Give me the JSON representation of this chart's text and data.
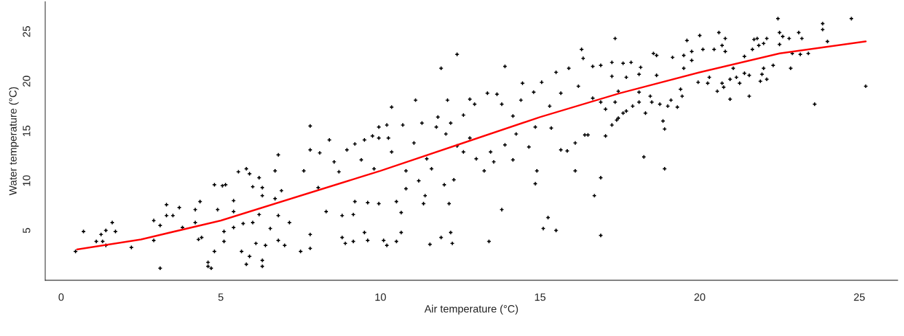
{
  "chart_data": {
    "type": "scatter",
    "xlabel": "Air temperature (°C)",
    "ylabel": "Water temperature (°C)",
    "xlim": [
      -0.5,
      26.2
    ],
    "ylim": [
      0,
      28
    ],
    "xticks": [
      0,
      5,
      10,
      15,
      20,
      25
    ],
    "yticks": [
      5,
      10,
      15,
      20,
      25
    ],
    "series": [
      {
        "marker": "cross",
        "color": "#000000",
        "x": [
          0.45,
          0.7,
          1.1,
          1.25,
          1.4,
          1.3,
          1.4,
          1.6,
          1.7,
          2.2,
          2.9,
          2.9,
          3.1,
          3.1,
          3.3,
          3.3,
          3.5,
          3.7,
          3.8,
          4.2,
          4.2,
          4.35,
          4.3,
          4.4,
          4.8,
          4.6,
          4.6,
          4.7,
          4.8,
          5.05,
          5.15,
          4.9,
          5.1,
          5.1,
          5.4,
          5.4,
          5.4,
          5.55,
          5.8,
          5.9,
          6.0,
          6.2,
          5.7,
          6.0,
          5.65,
          5.8,
          5.9,
          6.1,
          6.3,
          6.3,
          6.4,
          6.3,
          6.3,
          6.2,
          6.55,
          6.8,
          6.7,
          6.7,
          6.8,
          6.8,
          7.0,
          6.9,
          7.15,
          7.5,
          7.8,
          7.8,
          7.8,
          7.6,
          7.8,
          8.1,
          8.4,
          8.3,
          8.05,
          8.55,
          8.7,
          8.8,
          8.9,
          8.8,
          8.95,
          9.2,
          9.2,
          9.15,
          9.15,
          9.5,
          9.6,
          9.5,
          9.4,
          9.6,
          9.75,
          9.8,
          9.95,
          9.95,
          9.95,
          10.1,
          10.2,
          10.2,
          10.35,
          10.25,
          10.35,
          10.5,
          10.5,
          10.65,
          10.65,
          10.7,
          10.8,
          10.8,
          11.05,
          11.1,
          11.2,
          11.3,
          11.45,
          11.35,
          11.4,
          11.55,
          11.6,
          11.75,
          11.8,
          11.9,
          11.9,
          12.0,
          12.05,
          12.1,
          12.15,
          12.2,
          12.25,
          12.3,
          12.2,
          12.4,
          12.4,
          12.6,
          12.6,
          12.8,
          12.8,
          12.95,
          13.0,
          13.25,
          13.35,
          13.4,
          13.45,
          13.55,
          13.65,
          13.8,
          13.8,
          13.9,
          13.9,
          14.15,
          14.15,
          14.25,
          14.45,
          14.4,
          14.65,
          14.8,
          14.9,
          14.85,
          14.85,
          15.05,
          15.1,
          15.25,
          15.5,
          15.35,
          15.5,
          15.65,
          15.85,
          15.9,
          16.1,
          16.1,
          16.3,
          16.2,
          15.65,
          15.3,
          17.35,
          16.35,
          16.65,
          16.9,
          17.25,
          17.6,
          17.85,
          18.15,
          18.55,
          18.65,
          19.15,
          19.5,
          19.75,
          19.6,
          20.0,
          20.1,
          20.45,
          20.6,
          20.8,
          20.7,
          20.8,
          21.4,
          21.7,
          21.8,
          21.65,
          21.85,
          22.1,
          22.0,
          22.45,
          22.5,
          22.6,
          22.5,
          22.8,
          23.1,
          23.2,
          23.85,
          23.85,
          24.0,
          24.75,
          25.2,
          23.6,
          23.4,
          23.15,
          22.9,
          22.85,
          22.3,
          22.0,
          22.1,
          21.9,
          21.95,
          21.55,
          21.55,
          21.4,
          21.25,
          21.15,
          20.95,
          20.95,
          21.05,
          20.7,
          20.75,
          20.55,
          20.3,
          20.25,
          19.95,
          19.75,
          19.5,
          19.45,
          19.4,
          19.3,
          19.1,
          19.0,
          18.9,
          18.85,
          18.9,
          18.75,
          18.5,
          18.45,
          18.65,
          18.3,
          18.25,
          18.1,
          17.9,
          18.1,
          17.7,
          17.6,
          17.45,
          17.4,
          17.25,
          17.05,
          16.9,
          16.7,
          16.9,
          16.5,
          16.4,
          17.05,
          16.9,
          17.35,
          17.45,
          17.25,
          17.7,
          18.1,
          16.65
        ],
        "values": [
          2.9,
          4.9,
          3.9,
          4.6,
          5.0,
          3.9,
          3.5,
          5.8,
          4.9,
          3.3,
          6.0,
          4.0,
          5.5,
          1.2,
          7.6,
          6.5,
          6.5,
          7.3,
          5.3,
          7.1,
          5.8,
          7.9,
          4.1,
          4.3,
          2.9,
          1.8,
          1.4,
          1.2,
          9.6,
          9.5,
          9.6,
          7.1,
          4.9,
          3.9,
          8.0,
          6.9,
          5.3,
          10.9,
          11.2,
          10.7,
          9.4,
          10.3,
          5.7,
          5.8,
          2.9,
          1.6,
          2.4,
          3.7,
          2.0,
          1.4,
          3.5,
          8.5,
          9.3,
          6.6,
          5.2,
          12.6,
          11.0,
          8.2,
          6.5,
          4.0,
          3.5,
          9.0,
          5.8,
          2.9,
          3.2,
          15.5,
          4.6,
          11.0,
          13.1,
          12.8,
          14.1,
          6.9,
          9.3,
          11.9,
          10.9,
          4.3,
          3.7,
          6.5,
          13.1,
          13.7,
          7.9,
          6.6,
          3.9,
          4.8,
          4.0,
          14.1,
          12.1,
          7.8,
          14.5,
          11.2,
          7.7,
          15.4,
          14.3,
          4.0,
          3.5,
          15.6,
          17.4,
          14.3,
          12.9,
          3.9,
          7.9,
          6.8,
          4.8,
          15.6,
          11.0,
          9.2,
          13.8,
          18.1,
          10.0,
          15.8,
          12.2,
          7.7,
          8.5,
          3.6,
          11.2,
          15.4,
          16.4,
          21.3,
          4.3,
          9.6,
          14.7,
          18.1,
          7.7,
          4.8,
          3.7,
          10.1,
          15.8,
          22.7,
          13.5,
          12.9,
          16.6,
          18.2,
          14.3,
          17.7,
          12.2,
          11.0,
          18.8,
          3.9,
          12.9,
          11.9,
          18.7,
          7.1,
          17.7,
          21.5,
          13.6,
          12.1,
          16.5,
          14.7,
          19.8,
          18.1,
          13.4,
          18.9,
          11.0,
          9.7,
          15.4,
          19.9,
          5.2,
          6.3,
          5.0,
          15.3,
          20.9,
          13.1,
          13.0,
          21.3,
          11.0,
          13.8,
          23.2,
          19.5,
          18.8,
          17.5,
          24.3,
          22.3,
          21.5,
          21.6,
          21.9,
          21.8,
          21.9,
          21.4,
          22.8,
          22.6,
          22.4,
          22.6,
          23.0,
          24.1,
          24.6,
          23.2,
          23.2,
          24.9,
          24.3,
          23.6,
          23.0,
          22.5,
          24.2,
          24.3,
          23.2,
          23.6,
          24.3,
          23.8,
          26.3,
          24.9,
          24.5,
          23.7,
          24.3,
          24.9,
          24.3,
          25.8,
          25.2,
          24.0,
          26.3,
          19.5,
          17.7,
          22.8,
          22.7,
          22.8,
          21.3,
          21.6,
          21.3,
          20.2,
          20.0,
          20.7,
          18.5,
          20.6,
          20.8,
          19.8,
          20.4,
          20.2,
          18.2,
          21.3,
          19.8,
          19.4,
          19.0,
          20.4,
          19.8,
          19.9,
          22.1,
          21.3,
          18.5,
          19.2,
          17.4,
          18.1,
          17.5,
          15.2,
          16.0,
          11.2,
          17.7,
          17.9,
          18.5,
          20.6,
          16.8,
          12.4,
          17.9,
          17.5,
          20.7,
          17.0,
          16.8,
          16.3,
          16.1,
          15.6,
          14.5,
          4.5,
          8.5,
          10.3,
          14.6,
          14.6,
          17.2,
          17.9,
          17.9,
          19.0,
          20.5,
          20.4,
          18.9,
          18.3
        ]
      },
      {
        "type": "line",
        "color": "#ff0000",
        "x": [
          0.5,
          2.5,
          5,
          7.5,
          10,
          12.5,
          15,
          17.5,
          20,
          22.5,
          25.2
        ],
        "values": [
          3.1,
          4.1,
          6.0,
          8.5,
          11.0,
          13.7,
          16.4,
          18.8,
          20.9,
          22.8,
          24.0
        ]
      }
    ]
  }
}
